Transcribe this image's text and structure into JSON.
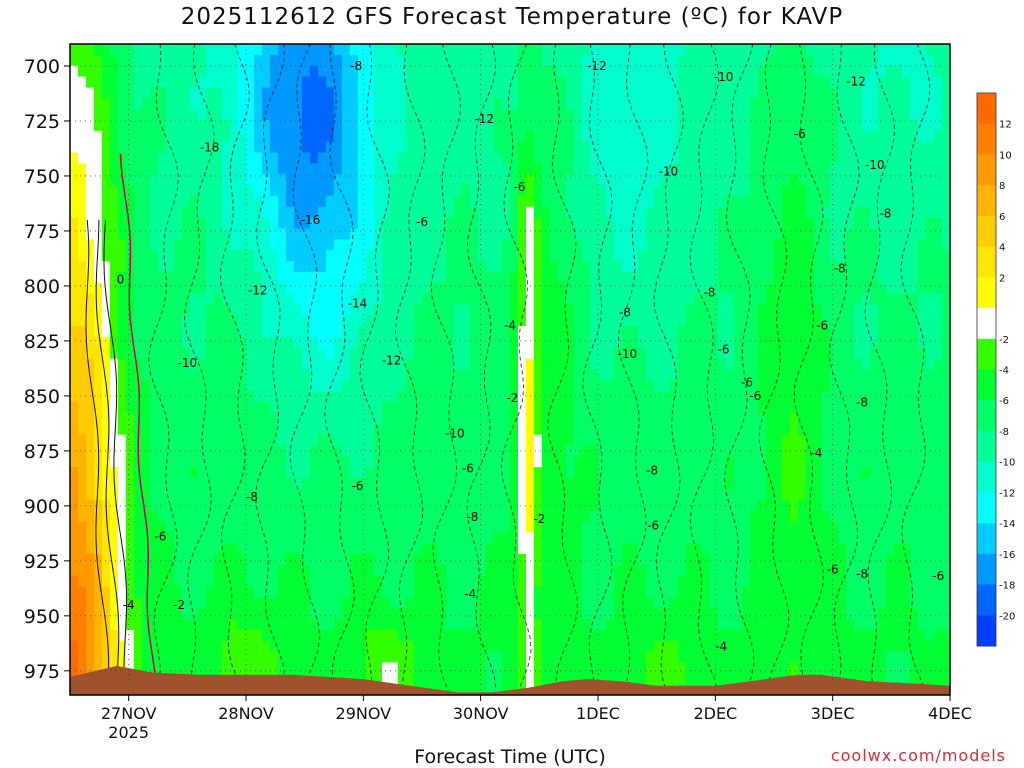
{
  "chart_data": {
    "type": "heatmap",
    "title": "2025112612 GFS Forecast Temperature (ºC) for KAVP",
    "xlabel": "Forecast Time (UTC)",
    "ylabel": "",
    "credit": "coolwx.com/models",
    "y_ticks": [
      700,
      725,
      750,
      775,
      800,
      825,
      850,
      875,
      900,
      925,
      950,
      975
    ],
    "ylim": [
      690,
      986
    ],
    "y_inverted": true,
    "x_ticks": [
      {
        "label": "27NOV",
        "sub": "2025",
        "day": 27
      },
      {
        "label": "28NOV",
        "sub": "",
        "day": 28
      },
      {
        "label": "29NOV",
        "sub": "",
        "day": 29
      },
      {
        "label": "30NOV",
        "sub": "",
        "day": 30
      },
      {
        "label": "1DEC",
        "sub": "",
        "day": 31
      },
      {
        "label": "2DEC",
        "sub": "",
        "day": 32
      },
      {
        "label": "3DEC",
        "sub": "",
        "day": 33
      },
      {
        "label": "4DEC",
        "sub": "",
        "day": 34
      }
    ],
    "xlim": [
      26.5,
      34
    ],
    "grid": true,
    "colorbar": {
      "ticks": [
        12,
        10,
        8,
        6,
        4,
        2,
        -2,
        -4,
        -6,
        -8,
        -10,
        -12,
        -14,
        -16,
        -18,
        -20
      ],
      "bands": [
        {
          "lo": 12,
          "hi": 14,
          "color": "#ff6a00"
        },
        {
          "lo": 10,
          "hi": 12,
          "color": "#ff8000"
        },
        {
          "lo": 8,
          "hi": 10,
          "color": "#ff9900"
        },
        {
          "lo": 6,
          "hi": 8,
          "color": "#ffb400"
        },
        {
          "lo": 4,
          "hi": 6,
          "color": "#ffcc00"
        },
        {
          "lo": 2,
          "hi": 4,
          "color": "#ffe600"
        },
        {
          "lo": 0,
          "hi": 2,
          "color": "#ffff00"
        },
        {
          "lo": -2,
          "hi": 0,
          "color": "#ffffff"
        },
        {
          "lo": -4,
          "hi": -2,
          "color": "#33ff00"
        },
        {
          "lo": -6,
          "hi": -4,
          "color": "#00ff33"
        },
        {
          "lo": -8,
          "hi": -6,
          "color": "#00ff66"
        },
        {
          "lo": -10,
          "hi": -8,
          "color": "#00ff99"
        },
        {
          "lo": -12,
          "hi": -10,
          "color": "#00ffcc"
        },
        {
          "lo": -14,
          "hi": -12,
          "color": "#00ffff"
        },
        {
          "lo": -16,
          "hi": -14,
          "color": "#00ccff"
        },
        {
          "lo": -18,
          "hi": -16,
          "color": "#0099ff"
        },
        {
          "lo": -20,
          "hi": -18,
          "color": "#0066ff"
        },
        {
          "lo": -22,
          "hi": -20,
          "color": "#0040ff"
        }
      ],
      "ground_color": "#a0522d"
    },
    "contour_labels": [
      {
        "text": "-8",
        "day": 28.94,
        "p": 700
      },
      {
        "text": "-12",
        "day": 30.99,
        "p": 700
      },
      {
        "text": "-10",
        "day": 32.07,
        "p": 705
      },
      {
        "text": "-12",
        "day": 33.2,
        "p": 707
      },
      {
        "text": "-18",
        "day": 27.69,
        "p": 737
      },
      {
        "text": "-12",
        "day": 30.03,
        "p": 724
      },
      {
        "text": "-6",
        "day": 32.72,
        "p": 731
      },
      {
        "text": "-10",
        "day": 31.6,
        "p": 748
      },
      {
        "text": "-10",
        "day": 33.36,
        "p": 745
      },
      {
        "text": "-6",
        "day": 30.33,
        "p": 755
      },
      {
        "text": "-16",
        "day": 28.55,
        "p": 770
      },
      {
        "text": "-6",
        "day": 29.5,
        "p": 771
      },
      {
        "text": "-8",
        "day": 33.45,
        "p": 767
      },
      {
        "text": "0",
        "day": 26.93,
        "p": 797
      },
      {
        "text": "-12",
        "day": 28.1,
        "p": 802
      },
      {
        "text": "-8",
        "day": 33.06,
        "p": 792
      },
      {
        "text": "-14",
        "day": 28.95,
        "p": 808
      },
      {
        "text": "-8",
        "day": 31.23,
        "p": 812
      },
      {
        "text": "-8",
        "day": 31.95,
        "p": 803
      },
      {
        "text": "-4",
        "day": 30.25,
        "p": 818
      },
      {
        "text": "-6",
        "day": 32.91,
        "p": 818
      },
      {
        "text": "-10",
        "day": 31.25,
        "p": 831
      },
      {
        "text": "-6",
        "day": 32.07,
        "p": 829
      },
      {
        "text": "-10",
        "day": 27.5,
        "p": 835
      },
      {
        "text": "-12",
        "day": 29.24,
        "p": 834
      },
      {
        "text": "-6",
        "day": 32.27,
        "p": 844
      },
      {
        "text": "-2",
        "day": 30.27,
        "p": 851
      },
      {
        "text": "-6",
        "day": 32.34,
        "p": 850
      },
      {
        "text": "-8",
        "day": 33.25,
        "p": 853
      },
      {
        "text": "-10",
        "day": 29.78,
        "p": 867
      },
      {
        "text": "-4",
        "day": 32.86,
        "p": 876
      },
      {
        "text": "-6",
        "day": 29.89,
        "p": 883
      },
      {
        "text": "-8",
        "day": 31.46,
        "p": 884
      },
      {
        "text": "-8",
        "day": 28.05,
        "p": 896
      },
      {
        "text": "-6",
        "day": 28.95,
        "p": 891
      },
      {
        "text": "-8",
        "day": 29.93,
        "p": 905
      },
      {
        "text": "-2",
        "day": 30.5,
        "p": 906
      },
      {
        "text": "-6",
        "day": 31.47,
        "p": 909
      },
      {
        "text": "-6",
        "day": 27.27,
        "p": 914
      },
      {
        "text": "-6",
        "day": 33.0,
        "p": 929
      },
      {
        "text": "-8",
        "day": 33.25,
        "p": 931
      },
      {
        "text": "-6",
        "day": 33.9,
        "p": 932
      },
      {
        "text": "-4",
        "day": 27.0,
        "p": 945
      },
      {
        "text": "-2",
        "day": 27.43,
        "p": 945
      },
      {
        "text": "-4",
        "day": 29.91,
        "p": 940
      },
      {
        "text": "-4",
        "day": 32.05,
        "p": 964
      }
    ]
  }
}
